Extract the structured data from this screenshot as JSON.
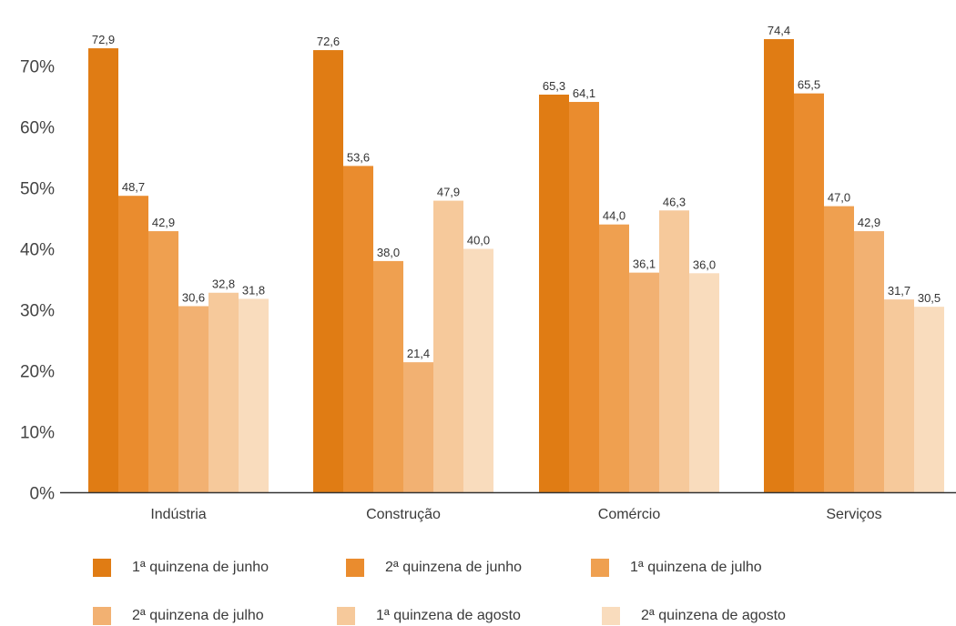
{
  "chart_data": {
    "type": "bar",
    "categories": [
      "Indústria",
      "Construção",
      "Comércio",
      "Serviços"
    ],
    "series": [
      {
        "name": "1ª quinzena de junho",
        "color": "#e07c14",
        "values": [
          72.9,
          72.6,
          65.3,
          74.4
        ],
        "labels": [
          "72,9",
          "72,6",
          "65,3",
          "74,4"
        ]
      },
      {
        "name": "2ª quinzena de junho",
        "color": "#ea8c2e",
        "values": [
          48.7,
          53.6,
          64.1,
          65.5
        ],
        "labels": [
          "48,7",
          "53,6",
          "64,1",
          "65,5"
        ]
      },
      {
        "name": "1ª quinzena de julho",
        "color": "#efa050",
        "values": [
          42.9,
          38.0,
          44.0,
          47.0
        ],
        "labels": [
          "42,9",
          "38,0",
          "44,0",
          "47,0"
        ]
      },
      {
        "name": "2ª quinzena de julho",
        "color": "#f2b172",
        "values": [
          30.6,
          21.4,
          36.1,
          42.9
        ],
        "labels": [
          "30,6",
          "21,4",
          "36,1",
          "42,9"
        ]
      },
      {
        "name": "1ª quinzena de agosto",
        "color": "#f6c99b",
        "values": [
          32.8,
          47.9,
          46.3,
          31.7
        ],
        "labels": [
          "32,8",
          "47,9",
          "46,3",
          "31,7"
        ]
      },
      {
        "name": "2ª quinzena de agosto",
        "color": "#f9dcbd",
        "values": [
          31.8,
          40.0,
          36.0,
          30.5
        ],
        "labels": [
          "31,8",
          "40,0",
          "36,0",
          "30,5"
        ]
      }
    ],
    "y_ticks": [
      0,
      10,
      20,
      30,
      40,
      50,
      60,
      70
    ],
    "y_tick_labels": [
      "0%",
      "10%",
      "20%",
      "30%",
      "40%",
      "50%",
      "60%",
      "70%"
    ],
    "ylim": [
      0,
      80
    ],
    "grid": false,
    "legend_position": "bottom"
  }
}
